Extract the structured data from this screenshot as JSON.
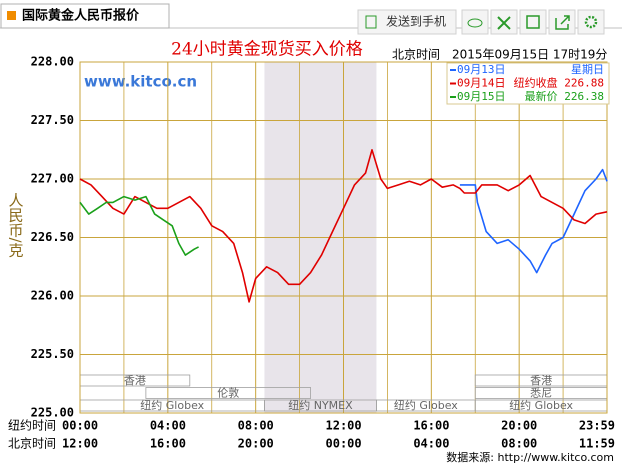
{
  "header": {
    "tab_title": "国际黄金人民币报价",
    "toolbar_button": "发送到手机"
  },
  "chart_data": {
    "type": "line",
    "title": "24小时黄金现货买入价格",
    "time_label": "北京时间",
    "timestamp": "2015年09月15日 17时19分",
    "watermark": "www.kitco.cn",
    "y_label": "人民币/克",
    "x_row_labels": [
      "纽约时间",
      "北京时间"
    ],
    "xlim": [
      0,
      24
    ],
    "xticks": [
      {
        "value": 0,
        "label": "00:00"
      },
      {
        "value": 4,
        "label": "04:00"
      },
      {
        "value": 8,
        "label": "08:00"
      },
      {
        "value": 12,
        "label": "12:00"
      },
      {
        "value": 16,
        "label": "16:00"
      },
      {
        "value": 20,
        "label": "20:00"
      },
      {
        "value": 24,
        "label": "23:59"
      }
    ],
    "xticks2": [
      {
        "value": 0,
        "label": "12:00"
      },
      {
        "value": 4,
        "label": "16:00"
      },
      {
        "value": 8,
        "label": "20:00"
      },
      {
        "value": 12,
        "label": "00:00"
      },
      {
        "value": 16,
        "label": "04:00"
      },
      {
        "value": 20,
        "label": "08:00"
      },
      {
        "value": 24,
        "label": "11:59"
      }
    ],
    "ylim": [
      225,
      228
    ],
    "yticks": [
      {
        "value": 228,
        "label": "228.00"
      },
      {
        "value": 227.5,
        "label": "227.50"
      },
      {
        "value": 227,
        "label": "227.00"
      },
      {
        "value": 226.5,
        "label": "226.50"
      },
      {
        "value": 226,
        "label": "226.00"
      },
      {
        "value": 225.5,
        "label": "225.50"
      },
      {
        "value": 225,
        "label": "225.00"
      }
    ],
    "grid": true,
    "series": [
      {
        "name": "09月13日",
        "note": "星期日",
        "color": "#1e64ff",
        "x": [
          17.3,
          18,
          18.1,
          18.5,
          19,
          19.5,
          20,
          20.5,
          20.8,
          21.2,
          21.5,
          22,
          22.5,
          23,
          23.5,
          23.8,
          24
        ],
        "values": [
          226.95,
          226.95,
          226.8,
          226.55,
          226.45,
          226.48,
          226.4,
          226.3,
          226.2,
          226.35,
          226.45,
          226.5,
          226.7,
          226.9,
          227.0,
          227.08,
          226.98
        ]
      },
      {
        "name": "09月14日",
        "note": "纽约收盘 226.88",
        "color": "#e00000",
        "x": [
          0,
          0.5,
          1,
          1.5,
          2,
          2.5,
          3,
          3.5,
          4,
          4.5,
          5,
          5.5,
          6,
          6.5,
          7,
          7.4,
          7.7,
          8,
          8.5,
          9,
          9.5,
          10,
          10.5,
          11,
          11.5,
          12,
          12.5,
          13,
          13.3,
          13.7,
          14,
          14.5,
          15,
          15.5,
          16,
          16.5,
          17,
          17.3,
          17.5,
          18,
          18.3,
          19,
          19.5,
          20,
          20.5,
          21,
          21.5,
          22,
          22.5,
          23,
          23.5,
          24
        ],
        "values": [
          227.0,
          226.95,
          226.85,
          226.75,
          226.7,
          226.85,
          226.8,
          226.75,
          226.75,
          226.8,
          226.85,
          226.75,
          226.6,
          226.55,
          226.45,
          226.2,
          225.95,
          226.15,
          226.25,
          226.2,
          226.1,
          226.1,
          226.2,
          226.35,
          226.55,
          226.75,
          226.95,
          227.05,
          227.25,
          227.0,
          226.92,
          226.95,
          226.98,
          226.95,
          227.0,
          226.93,
          226.95,
          226.92,
          226.88,
          226.88,
          226.95,
          226.95,
          226.9,
          226.95,
          227.03,
          226.85,
          226.8,
          226.75,
          226.65,
          226.62,
          226.7,
          226.72
        ]
      },
      {
        "name": "09月15日",
        "note": "最新价 226.38",
        "color": "#1aa01a",
        "x": [
          0,
          0.4,
          0.8,
          1.2,
          1.5,
          2,
          2.5,
          3,
          3.4,
          3.8,
          4.2,
          4.5,
          4.8,
          5.2,
          5.4
        ],
        "values": [
          226.8,
          226.7,
          226.75,
          226.8,
          226.8,
          226.85,
          226.82,
          226.85,
          226.7,
          226.65,
          226.6,
          226.45,
          226.35,
          226.4,
          226.42
        ]
      }
    ],
    "sessions": [
      {
        "label": "香港",
        "start": 0,
        "end": 5,
        "row": 0
      },
      {
        "label": "香港",
        "start": 18,
        "end": 24,
        "row": 0
      },
      {
        "label": "伦敦",
        "start": 3,
        "end": 10.5,
        "row": 1
      },
      {
        "label": "悉尼",
        "start": 18,
        "end": 24,
        "row": 1
      },
      {
        "label": "纽约 Globex",
        "start": 0,
        "end": 8.4,
        "row": 2
      },
      {
        "label": "纽约 NYMEX",
        "start": 8.4,
        "end": 13.5,
        "row": 2,
        "highlight": true
      },
      {
        "label": "纽约 Globex",
        "start": 13.5,
        "end": 18,
        "row": 2
      },
      {
        "label": "纽约 Globex",
        "start": 18,
        "end": 24,
        "row": 2
      }
    ]
  },
  "footer": "数据来源: http://www.kitco.com"
}
